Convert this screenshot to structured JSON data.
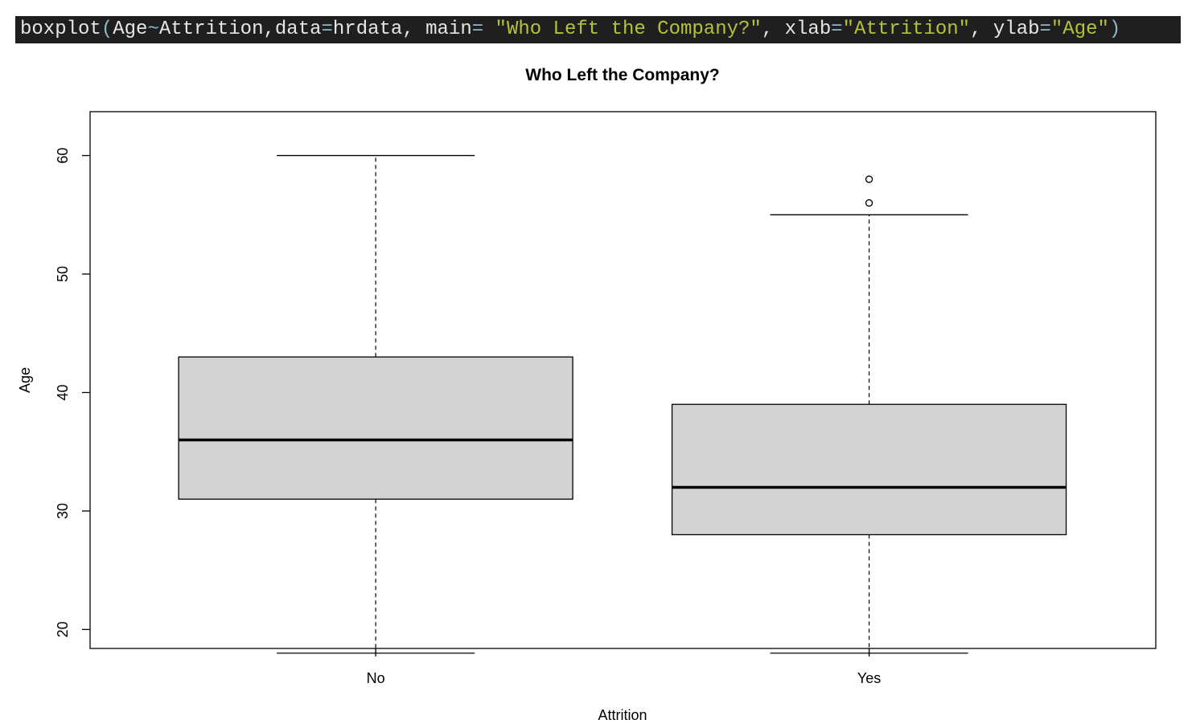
{
  "code": {
    "tokens": [
      {
        "text": "boxplot",
        "kind": "plain"
      },
      {
        "text": "(",
        "kind": "op"
      },
      {
        "text": "Age",
        "kind": "plain"
      },
      {
        "text": "~",
        "kind": "op"
      },
      {
        "text": "Attrition,data",
        "kind": "plain"
      },
      {
        "text": "=",
        "kind": "op"
      },
      {
        "text": "hrdata, main",
        "kind": "plain"
      },
      {
        "text": "= ",
        "kind": "op"
      },
      {
        "text": "\"Who Left the Company?\"",
        "kind": "str"
      },
      {
        "text": ", xlab",
        "kind": "plain"
      },
      {
        "text": "=",
        "kind": "op"
      },
      {
        "text": "\"Attrition\"",
        "kind": "str"
      },
      {
        "text": ", ylab",
        "kind": "plain"
      },
      {
        "text": "=",
        "kind": "op"
      },
      {
        "text": "\"Age\"",
        "kind": "str"
      },
      {
        "text": ")",
        "kind": "op"
      }
    ]
  },
  "chart_data": {
    "type": "boxplot",
    "title": "Who Left the Company?",
    "xlabel": "Attrition",
    "ylabel": "Age",
    "ylim": [
      18.4,
      63.7
    ],
    "yticks": [
      20,
      30,
      40,
      50,
      60
    ],
    "categories": [
      "No",
      "Yes"
    ],
    "boxes": [
      {
        "category": "No",
        "min": 18,
        "q1": 31,
        "median": 36,
        "q3": 43,
        "max": 60,
        "outliers": []
      },
      {
        "category": "Yes",
        "min": 18,
        "q1": 28,
        "median": 32,
        "q3": 39,
        "max": 55,
        "outliers": [
          56,
          58
        ]
      }
    ],
    "colors": {
      "box_fill": "#d3d3d3",
      "line": "#000000"
    }
  }
}
